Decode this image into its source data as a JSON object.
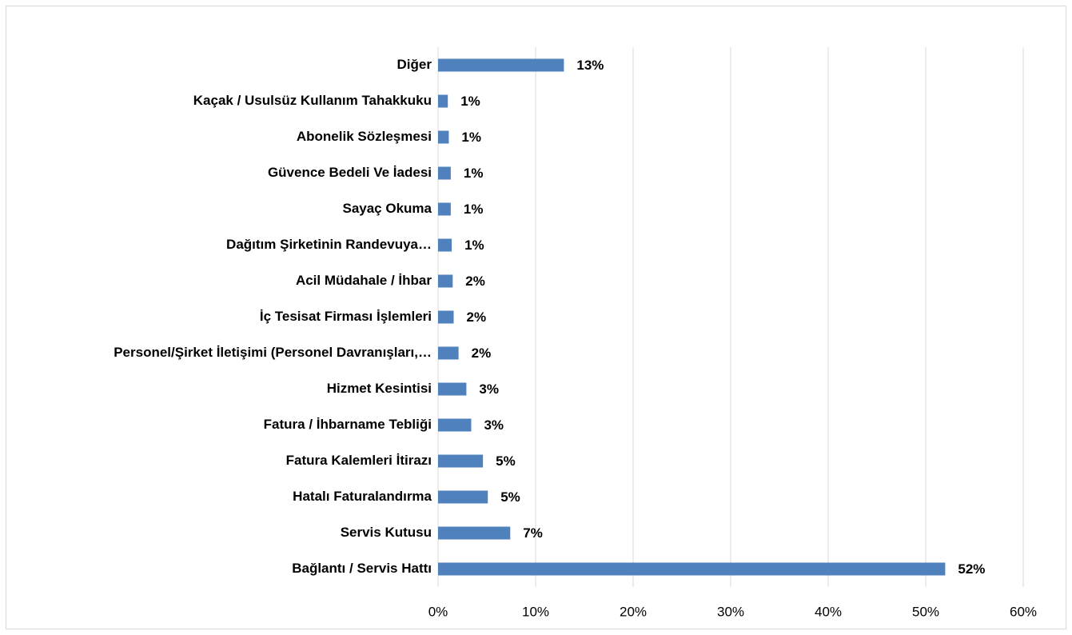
{
  "chart_data": {
    "type": "barh",
    "categories": [
      "Diğer",
      "Kaçak / Usulsüz Kullanım Tahakkuku",
      "Abonelik Sözleşmesi",
      "Güvence Bedeli Ve İadesi",
      "Sayaç Okuma",
      "Dağıtım Şirketinin Randevuya…",
      "Acil Müdahale / İhbar",
      "İç Tesisat Firması İşlemleri",
      "Personel/Şirket İletişimi (Personel Davranışları,…",
      "Hizmet Kesintisi",
      "Fatura / İhbarname Tebliği",
      "Fatura Kalemleri İtirazı",
      "Hatalı Faturalandırma",
      "Servis Kutusu",
      "Bağlantı / Servis Hattı"
    ],
    "values": [
      12.9,
      1.0,
      1.1,
      1.3,
      1.3,
      1.4,
      1.5,
      1.6,
      2.1,
      2.9,
      3.4,
      4.6,
      5.1,
      7.4,
      52.0
    ],
    "value_labels": [
      "13%",
      "1%",
      "1%",
      "1%",
      "1%",
      "1%",
      "2%",
      "2%",
      "2%",
      "3%",
      "3%",
      "5%",
      "5%",
      "7%",
      "52%"
    ],
    "color": "#4f81bd",
    "xlim": [
      0,
      60
    ],
    "xticks": [
      {
        "value": 0,
        "label": "0%"
      },
      {
        "value": 10,
        "label": "10%"
      },
      {
        "value": 20,
        "label": "20%"
      },
      {
        "value": 30,
        "label": "30%"
      },
      {
        "value": 40,
        "label": "40%"
      },
      {
        "value": 50,
        "label": "50%"
      },
      {
        "value": 60,
        "label": "60%"
      }
    ],
    "grid": true
  }
}
